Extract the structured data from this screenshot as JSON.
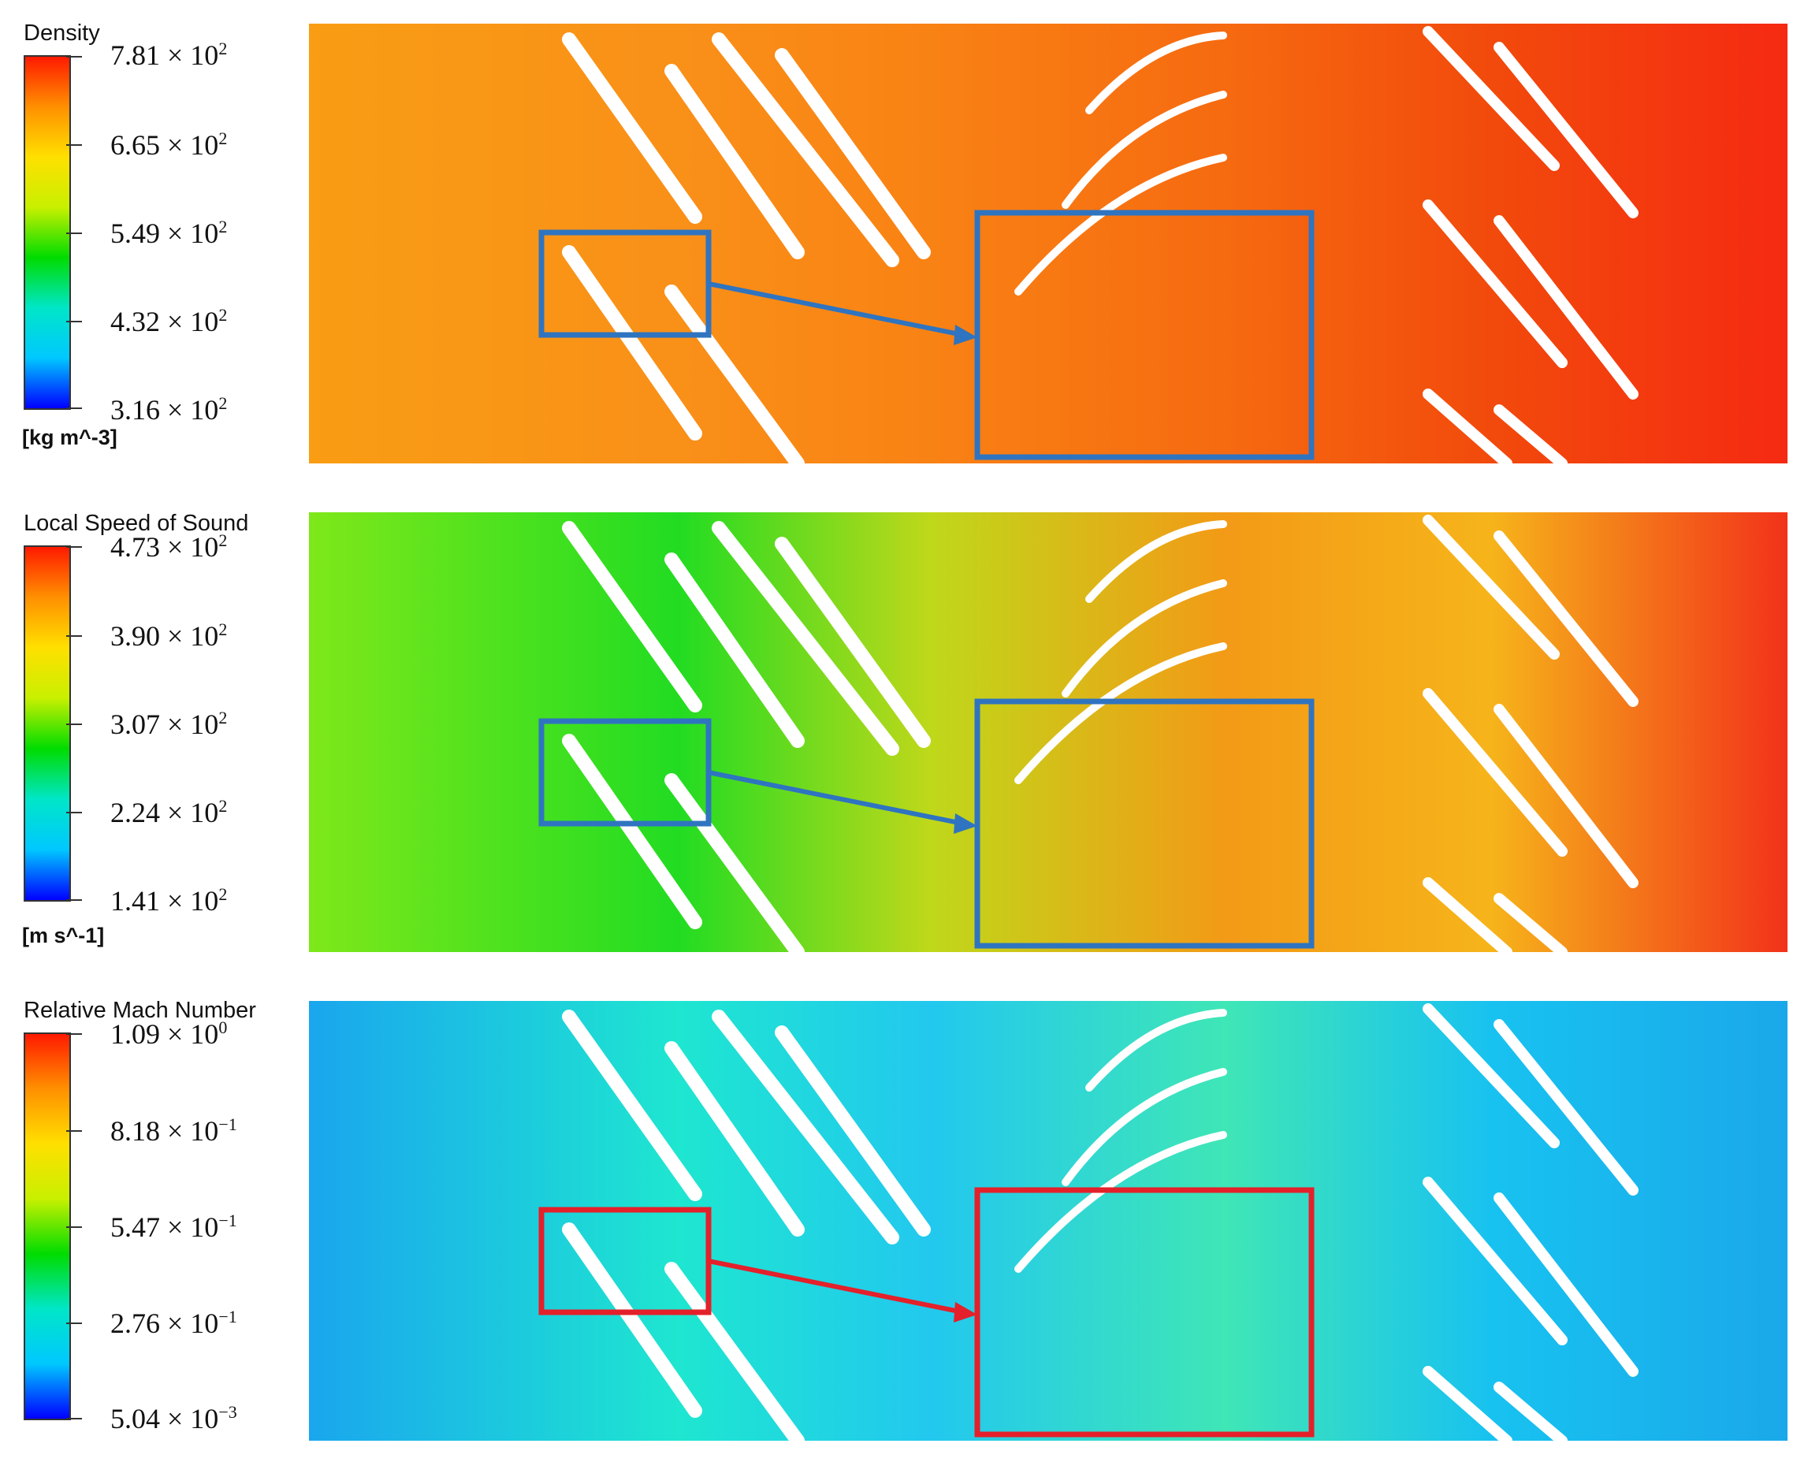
{
  "panels": [
    {
      "id": "density",
      "variable": "Density",
      "unit": "[kg m^-3]",
      "ticks": [
        {
          "mantissa": "7.81",
          "exponent": "2"
        },
        {
          "mantissa": "6.65",
          "exponent": "2"
        },
        {
          "mantissa": "5.49",
          "exponent": "2"
        },
        {
          "mantissa": "4.32",
          "exponent": "2"
        },
        {
          "mantissa": "3.16",
          "exponent": "2"
        }
      ],
      "inset_color": "#2f74c0",
      "field_colors": [
        "#f99d14",
        "#f99018",
        "#f98214",
        "#f66a10",
        "#f24a0c",
        "#f52a12"
      ]
    },
    {
      "id": "speed_of_sound",
      "variable": "Local Speed of Sound",
      "unit": "[m s^-1]",
      "ticks": [
        {
          "mantissa": "4.73",
          "exponent": "2"
        },
        {
          "mantissa": "3.90",
          "exponent": "2"
        },
        {
          "mantissa": "3.07",
          "exponent": "2"
        },
        {
          "mantissa": "2.24",
          "exponent": "2"
        },
        {
          "mantissa": "1.41",
          "exponent": "2"
        }
      ],
      "inset_color": "#2f74c0",
      "field_colors": [
        "#7ee81a",
        "#22dc22",
        "#bfd81a",
        "#f39a16",
        "#f6b41a",
        "#f2321a"
      ]
    },
    {
      "id": "relative_mach",
      "variable": "Relative Mach Number",
      "unit": "",
      "ticks": [
        {
          "mantissa": "1.09",
          "exponent": "0"
        },
        {
          "mantissa": "8.18",
          "exponent": "−1"
        },
        {
          "mantissa": "5.47",
          "exponent": "−1"
        },
        {
          "mantissa": "2.76",
          "exponent": "−1"
        },
        {
          "mantissa": "5.04",
          "exponent": "−3"
        }
      ],
      "inset_color": "#e4202a",
      "field_colors": [
        "#1aa6ee",
        "#1ee6d0",
        "#22c8ee",
        "#3fe6b6",
        "#18c2f0",
        "#1aa8ea"
      ]
    }
  ],
  "colormap": [
    "#0000ff",
    "#00c8ff",
    "#00e6c8",
    "#00dc00",
    "#c8f000",
    "#ffe000",
    "#ff9000",
    "#ff1a00"
  ]
}
